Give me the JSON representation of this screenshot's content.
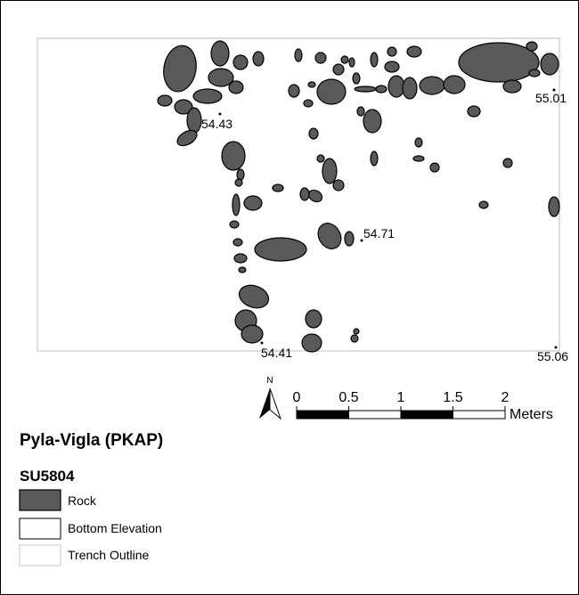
{
  "map": {
    "title": "Pyla-Vigla (PKAP)",
    "subtitle": "SU5804",
    "north": "N",
    "elevations": [
      54.43,
      54.71,
      55.01,
      54.41,
      55.06
    ],
    "scale_bar": {
      "ticks": [
        0,
        0.5,
        1,
        1.5,
        2
      ],
      "unit": "Meters"
    },
    "legend": [
      "Rock",
      "Bottom Elevation",
      "Trench Outline"
    ]
  }
}
